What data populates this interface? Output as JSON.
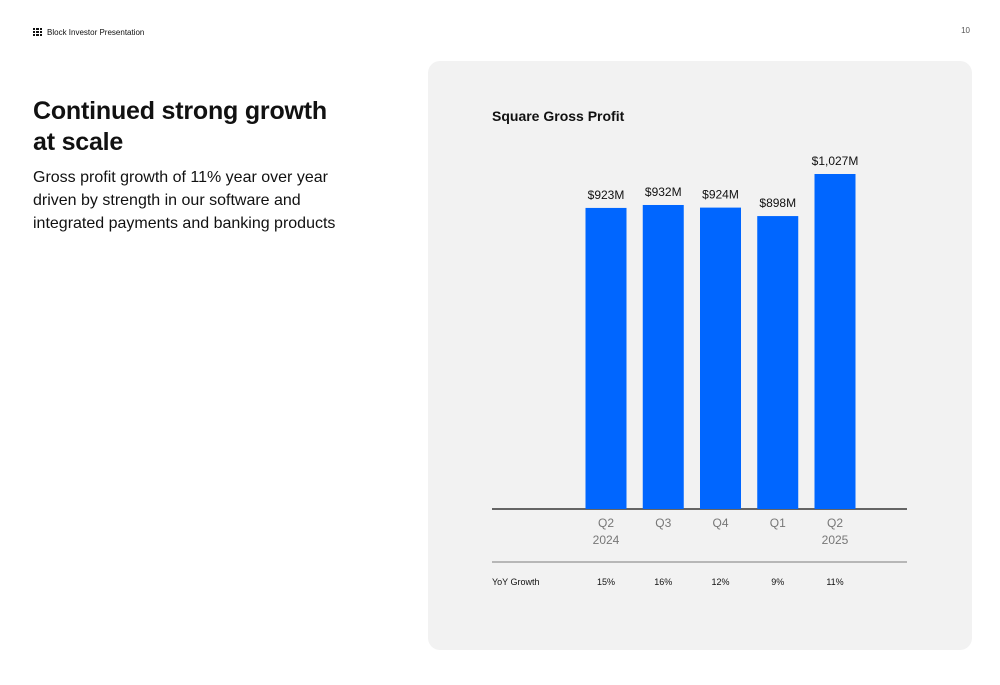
{
  "header": {
    "brand": "Block Investor Presentation",
    "page_number": "10"
  },
  "slide": {
    "title": "Continued strong growth at scale",
    "subtitle": "Gross profit growth of 11% year over year driven by strength in our software and integrated payments and banking products"
  },
  "colors": {
    "bar": "#0066ff",
    "panel": "#f2f2f2"
  },
  "chart_data": {
    "type": "bar",
    "title": "Square Gross Profit",
    "categories": [
      [
        "Q2",
        "2024"
      ],
      [
        "Q3"
      ],
      [
        "Q4"
      ],
      [
        "Q1"
      ],
      [
        "Q2",
        "2025"
      ]
    ],
    "values": [
      923,
      932,
      924,
      898,
      1027
    ],
    "value_labels": [
      "$923M",
      "$932M",
      "$924M",
      "$898M",
      "$1,027M"
    ],
    "unit": "$M",
    "row": {
      "label": "YoY Growth",
      "values": [
        "15%",
        "16%",
        "12%",
        "9%",
        "11%"
      ]
    },
    "grid": false,
    "ylim": [
      0,
      1027
    ]
  }
}
